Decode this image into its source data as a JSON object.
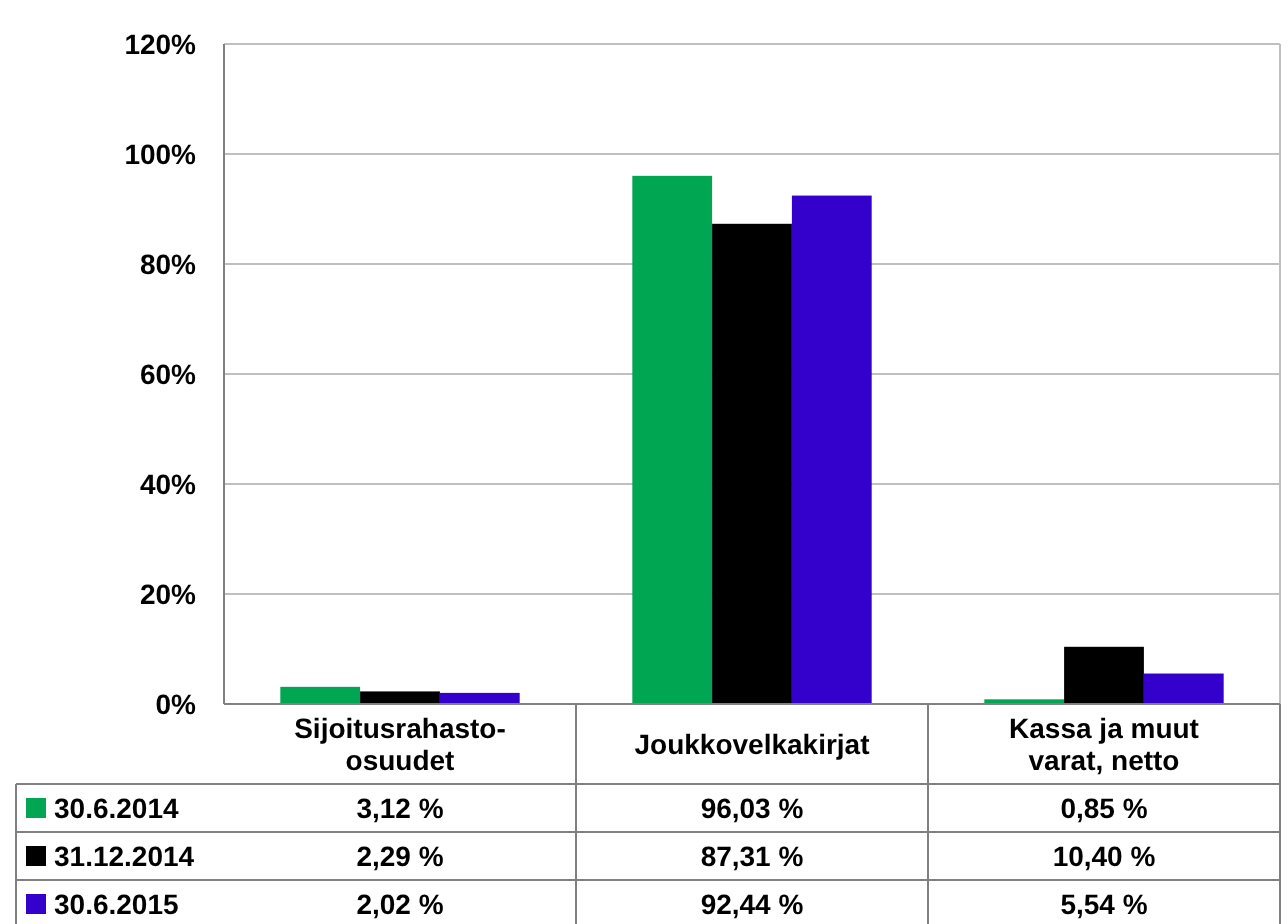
{
  "chart_data": {
    "type": "bar",
    "categories": [
      "Sijoitusrahasto-\nosuudet",
      "Joukkovelkakirjat",
      "Kassa ja muut\nvarat, netto"
    ],
    "series": [
      {
        "name": "30.6.2014",
        "color": "#00a651",
        "values": [
          3.12,
          96.03,
          0.85
        ],
        "value_labels": [
          "3,12 %",
          "96,03 %",
          "0,85 %"
        ]
      },
      {
        "name": "31.12.2014",
        "color": "#000000",
        "values": [
          2.29,
          87.31,
          10.4
        ],
        "value_labels": [
          "2,29 %",
          "87,31 %",
          "10,40 %"
        ]
      },
      {
        "name": "30.6.2015",
        "color": "#3300cc",
        "values": [
          2.02,
          92.44,
          5.54
        ],
        "value_labels": [
          "2,02 %",
          "92,44 %",
          "5,54 %"
        ]
      }
    ],
    "ylim": [
      0,
      120
    ],
    "yticks": [
      {
        "value": 0,
        "label": "0%"
      },
      {
        "value": 20,
        "label": "20%"
      },
      {
        "value": 40,
        "label": "40%"
      },
      {
        "value": 60,
        "label": "60%"
      },
      {
        "value": 80,
        "label": "80%"
      },
      {
        "value": 100,
        "label": "100%"
      },
      {
        "value": 120,
        "label": "120%"
      }
    ],
    "grid": true,
    "legend": "bottom left"
  }
}
